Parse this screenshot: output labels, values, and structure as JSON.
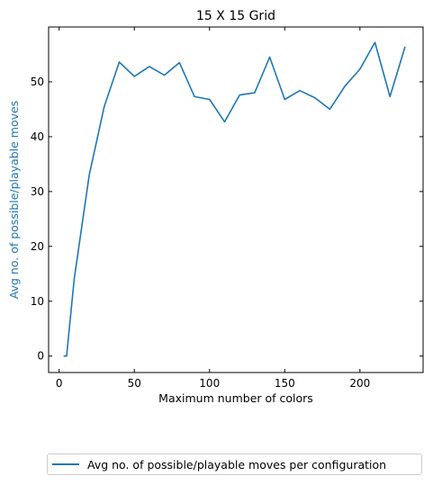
{
  "chart_data": {
    "type": "line",
    "title": "15 X 15 Grid",
    "xlabel": "Maximum number of colors",
    "ylabel": "Avg no. of possible/playable moves",
    "xlim": [
      -7,
      242
    ],
    "ylim": [
      -3,
      60
    ],
    "xticks": [
      0,
      50,
      100,
      150,
      200
    ],
    "yticks": [
      0,
      10,
      20,
      30,
      40,
      50
    ],
    "grid": false,
    "legend_position": "bottom-center, below plot",
    "series": [
      {
        "name": "Avg no. of possible/playable moves per configuration",
        "color": "#1f77b4",
        "x": [
          3,
          5,
          10,
          20,
          30,
          40,
          50,
          60,
          70,
          80,
          90,
          100,
          110,
          120,
          130,
          140,
          150,
          160,
          170,
          180,
          190,
          200,
          210,
          220,
          230
        ],
        "y": [
          0,
          0,
          14,
          33,
          45.5,
          53.6,
          51,
          52.8,
          51.2,
          53.5,
          47.3,
          46.8,
          42.7,
          47.6,
          48,
          54.5,
          46.8,
          48.4,
          47.1,
          45,
          49.2,
          52.3,
          57.2,
          47.3,
          56.4
        ]
      }
    ],
    "ylabel_color": "#1f77b4"
  }
}
